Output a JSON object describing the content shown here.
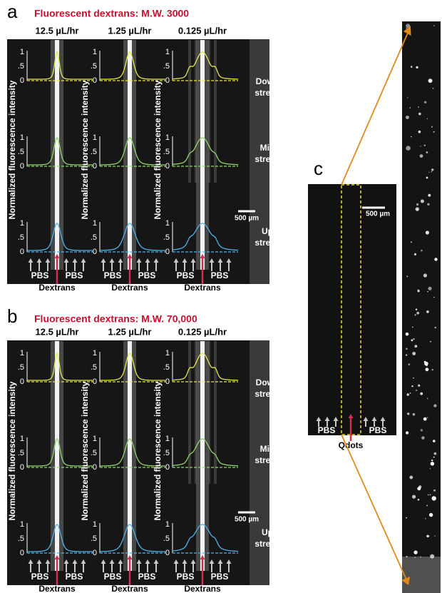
{
  "panels": [
    {
      "label": "a",
      "title": "Fluorescent dextrans: M.W. 3000",
      "columns": [
        {
          "flow_rate": "12.5 µL/hr",
          "y_axis_label": "Normalized fluorescence intensity",
          "inlet_labels": [
            "PBS",
            "PBS",
            "Dextrans"
          ]
        },
        {
          "flow_rate": "1.25 µL/hr",
          "y_axis_label": "Normalized fluorescence intensity",
          "inlet_labels": [
            "PBS",
            "PBS",
            "Dextrans"
          ]
        },
        {
          "flow_rate": "0.125 µL/hr",
          "y_axis_label": "Normalized fluorescence intensity",
          "inlet_labels": [
            "PBS",
            "PBS",
            "Dextrans"
          ]
        }
      ],
      "y_ticks": [
        "1",
        ".5",
        "0"
      ],
      "regions": [
        [
          "Down-",
          "stream"
        ],
        [
          "Mid-",
          "stream"
        ],
        [
          "Up-",
          "stream"
        ]
      ],
      "scale_bar": "500 µm"
    },
    {
      "label": "b",
      "title": "Fluorescent dextrans: M.W. 70,000",
      "columns": [
        {
          "flow_rate": "12.5 µL/hr",
          "y_axis_label": "Normalized fluorescence intensity",
          "inlet_labels": [
            "PBS",
            "PBS",
            "Dextrans"
          ]
        },
        {
          "flow_rate": "1.25 µL/hr",
          "y_axis_label": "Normalized fluorescence intensity",
          "inlet_labels": [
            "PBS",
            "PBS",
            "Dextrans"
          ]
        },
        {
          "flow_rate": "0.125 µL/hr",
          "y_axis_label": "Normalized fluorescence intensity",
          "inlet_labels": [
            "PBS",
            "PBS",
            "Dextrans"
          ]
        }
      ],
      "y_ticks": [
        "1",
        ".5",
        "0"
      ],
      "regions": [
        [
          "Down-",
          "stream"
        ],
        [
          "Mid-",
          "stream"
        ],
        [
          "Up-",
          "stream"
        ]
      ],
      "scale_bar": "500 µm"
    }
  ],
  "panel_c": {
    "label": "c",
    "scale_bar": "500 µm",
    "inlet_labels": [
      "PBS",
      "PBS",
      "Qdots"
    ]
  }
}
